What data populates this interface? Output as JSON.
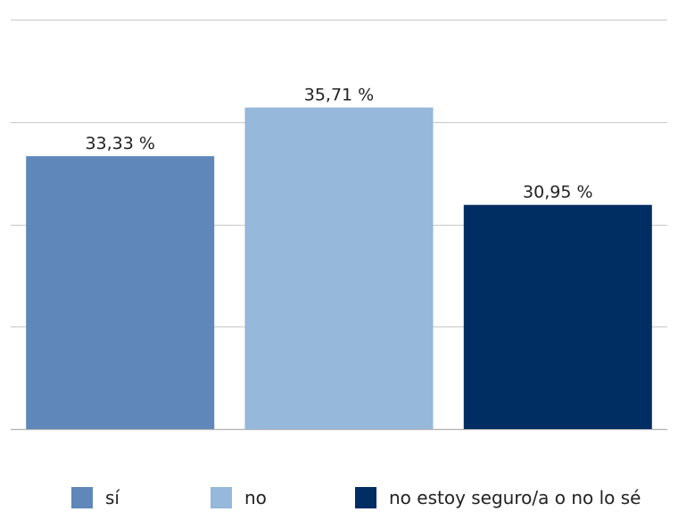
{
  "chart_data": {
    "type": "bar",
    "categories": [
      "sí",
      "no",
      "no estoy seguro/a o no lo sé"
    ],
    "values": [
      33.33,
      35.71,
      30.95
    ],
    "data_labels": [
      "33,33 %",
      "35,71 %",
      "30,95 %"
    ],
    "colors": [
      "#5f87b9",
      "#95b8db",
      "#002d62"
    ],
    "ylim": [
      20,
      40
    ],
    "grid": true,
    "legend_position": "bottom"
  }
}
